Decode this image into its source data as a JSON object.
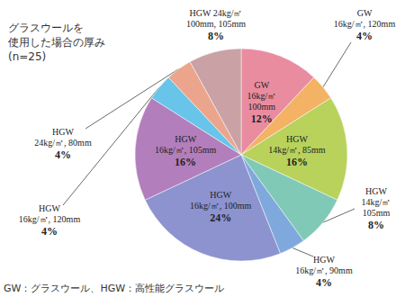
{
  "chart_data": {
    "type": "pie",
    "title": "グラスウールを\n使用した場合の厚み\n(n=25)",
    "annotations": [
      "GW：グラスウール、HGW：高性能グラスウール"
    ],
    "categories": [
      "GW\n16kg/㎡\n100mm",
      "GW\n16kg/㎡, 120mm",
      "HGW\n14kg/㎡, 85mm",
      "HGW\n14kg/㎡\n105mm",
      "HGW\n16kg/㎡, 90mm",
      "HGW\n16kg/㎡, 100mm",
      "HGW\n16kg/㎡, 105mm",
      "HGW\n16kg/㎡, 120mm",
      "HGW\n24kg/㎡, 80mm",
      "HGW 24kg/㎡\n100mm, 105mm"
    ],
    "values": [
      12,
      4,
      16,
      8,
      4,
      24,
      16,
      4,
      4,
      8
    ],
    "value_labels": [
      "12%",
      "4%",
      "16%",
      "8%",
      "4%",
      "24%",
      "16%",
      "4%",
      "4%",
      "8%"
    ],
    "colors": [
      "#e98ca0",
      "#f3b264",
      "#b8d25c",
      "#7fc9b6",
      "#7fa9dc",
      "#8c93cf",
      "#b27ebc",
      "#68c4e8",
      "#eba58c",
      "#caa1a4"
    ],
    "data_labels": true
  }
}
